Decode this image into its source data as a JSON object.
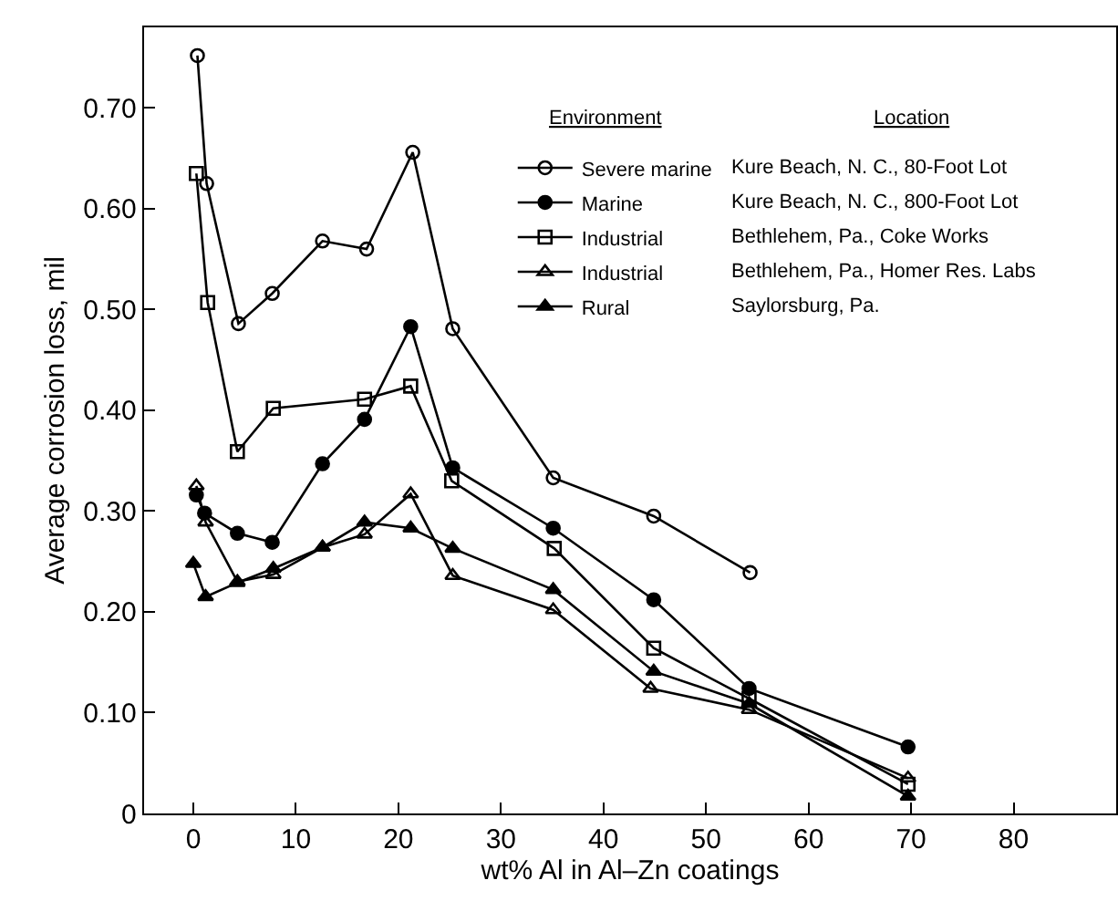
{
  "chart_data": {
    "type": "line",
    "xlabel": "wt% Al in Al–Zn coatings",
    "ylabel": "Average corrosion loss, mil",
    "xlim": [
      -4.8,
      90
    ],
    "ylim": [
      0,
      0.78
    ],
    "xticks": [
      0,
      10,
      20,
      30,
      40,
      50,
      60,
      70,
      80
    ],
    "yticks": [
      {
        "value": 0,
        "label": "0"
      },
      {
        "value": 0.1,
        "label": "0.10"
      },
      {
        "value": 0.2,
        "label": "0.20"
      },
      {
        "value": 0.3,
        "label": "0.30"
      },
      {
        "value": 0.4,
        "label": "0.40"
      },
      {
        "value": 0.5,
        "label": "0.50"
      },
      {
        "value": 0.6,
        "label": "0.60"
      },
      {
        "value": 0.7,
        "label": "0.70"
      }
    ],
    "legend": "top right",
    "line_style": "solid",
    "annotations": [
      "Environment",
      "Location",
      "Kure Beach, N. C., 80-Foot Lot",
      "Kure Beach, N. C., 800-Foot Lot",
      "Bethlehem, Pa., Coke Works",
      "Bethlehem, Pa., Homer Res. Labs",
      "Saylorsburg, Pa."
    ],
    "series": [
      {
        "name": "Severe marine",
        "color": "#000000",
        "marker": "circle-open",
        "x": [
          0.4,
          1.3,
          4.4,
          7.7,
          12.6,
          16.9,
          21.4,
          25.3,
          35.1,
          44.9,
          54.3
        ],
        "values": [
          0.752,
          0.625,
          0.486,
          0.516,
          0.568,
          0.56,
          0.656,
          0.481,
          0.333,
          0.295,
          0.239
        ]
      },
      {
        "name": "Marine",
        "color": "#000000",
        "marker": "circle",
        "x": [
          0.3,
          1.1,
          4.3,
          7.7,
          12.6,
          16.7,
          21.2,
          25.3,
          35.1,
          44.9,
          54.2,
          69.7
        ],
        "values": [
          0.316,
          0.298,
          0.278,
          0.269,
          0.347,
          0.391,
          0.483,
          0.343,
          0.283,
          0.212,
          0.124,
          0.066
        ]
      },
      {
        "name": "Industrial",
        "color": "#000000",
        "marker": "square-open",
        "x": [
          0.3,
          1.4,
          4.3,
          7.8,
          16.7,
          21.2,
          25.2,
          35.2,
          44.9,
          54.2,
          69.7
        ],
        "values": [
          0.635,
          0.507,
          0.359,
          0.402,
          0.411,
          0.424,
          0.33,
          0.263,
          0.164,
          0.114,
          0.029
        ]
      },
      {
        "name": "Industrial",
        "color": "#000000",
        "marker": "triangle-open",
        "x": [
          0.3,
          1.2,
          4.3,
          7.8,
          12.6,
          16.7,
          21.2,
          25.3,
          35.1,
          44.6,
          54.2,
          69.7
        ],
        "values": [
          0.325,
          0.289,
          0.23,
          0.237,
          0.264,
          0.277,
          0.317,
          0.236,
          0.202,
          0.124,
          0.103,
          0.035
        ]
      },
      {
        "name": "Rural",
        "color": "#000000",
        "marker": "triangle",
        "x": [
          0.0,
          1.2,
          4.3,
          7.8,
          12.6,
          16.7,
          21.2,
          25.3,
          35.1,
          44.9,
          54.2,
          69.7
        ],
        "values": [
          0.248,
          0.215,
          0.229,
          0.243,
          0.264,
          0.289,
          0.283,
          0.263,
          0.222,
          0.141,
          0.109,
          0.017
        ]
      }
    ]
  }
}
